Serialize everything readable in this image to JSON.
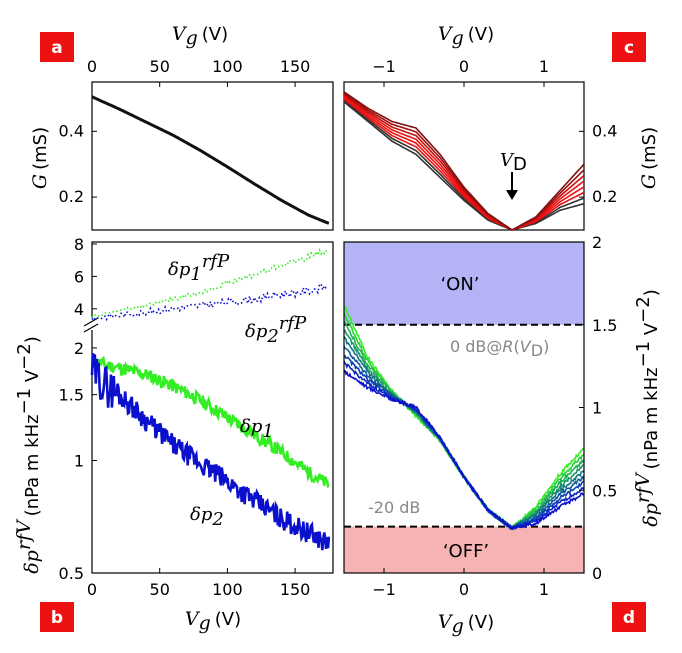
{
  "panels": {
    "a": {
      "badge": "a",
      "xlabel": "V_g (V)",
      "ylabel": "G (mS)"
    },
    "b": {
      "badge": "b",
      "xlabel": "V_g (V)",
      "ylabel": "δp^rfV (nPa m kHz^−1 V^−2)"
    },
    "c": {
      "badge": "c",
      "xlabel": "V_g (V)",
      "ylabel": "G (mS)"
    },
    "d": {
      "badge": "d",
      "xlabel": "V_g (V)",
      "ylabel": "δp^rfV (nPa m kHz^−1 V^−2)"
    }
  },
  "labels": {
    "vg_unit": "(V)",
    "g_unit": "(mS)",
    "dp_unit": "(nPa m kHz",
    "dp1_rfp": "δp1rfP",
    "dp2_rfp": "δp2rfP",
    "dp1": "δp1",
    "dp2": "δp2",
    "vd": "VD",
    "on": "‘ON’",
    "off": "‘OFF’",
    "zero_db": "0 dB@R(VD)",
    "minus20db": "-20 dB"
  },
  "colors": {
    "black": "#111111",
    "green": "#33ee22",
    "blue": "#0a10cc",
    "red": "#ee1111",
    "on_band": "#b3b3f5",
    "off_band": "#f6b3b3",
    "badge": "#ee1111"
  },
  "chart_data": [
    {
      "panel": "a",
      "type": "line",
      "xlabel": "Vg (V)",
      "ylabel": "G (mS)",
      "xlim": [
        0,
        178
      ],
      "ylim": [
        0.1,
        0.55
      ],
      "xticks": [
        0,
        50,
        100,
        150
      ],
      "yticks": [
        0.2,
        0.4
      ],
      "x": [
        0,
        20,
        40,
        60,
        80,
        100,
        120,
        140,
        160,
        175
      ],
      "series": [
        {
          "values": [
            0.505,
            0.468,
            0.428,
            0.388,
            0.342,
            0.292,
            0.24,
            0.19,
            0.145,
            0.12
          ]
        }
      ]
    },
    {
      "panel": "b",
      "type": "line",
      "xlabel": "Vg (V)",
      "ylabel": "δp^rfV (nPa m kHz^-1 V^-2)",
      "xlim": [
        0,
        178
      ],
      "ylim_lower": [
        0.5,
        2.1
      ],
      "ylim_upper": [
        3,
        8
      ],
      "yticks_lower": [
        0.5,
        1,
        1.5,
        2
      ],
      "yticks_upper": [
        4,
        6,
        8
      ],
      "yscale_lower": "log",
      "x": [
        0,
        10,
        20,
        40,
        60,
        80,
        100,
        120,
        140,
        160,
        175
      ],
      "series": [
        {
          "name": "δp1rfP",
          "values": [
            3.5,
            3.7,
            3.9,
            4.2,
            4.6,
            5.0,
            5.6,
            6.1,
            6.7,
            7.2,
            7.7
          ]
        },
        {
          "name": "δp2rfP",
          "values": [
            3.4,
            3.5,
            3.6,
            3.8,
            4.0,
            4.2,
            4.4,
            4.6,
            4.9,
            5.1,
            5.4
          ]
        },
        {
          "name": "δp1",
          "values": [
            1.85,
            1.8,
            1.77,
            1.7,
            1.58,
            1.45,
            1.3,
            1.17,
            1.05,
            0.93,
            0.86
          ]
        },
        {
          "name": "δp2",
          "values": [
            1.75,
            1.6,
            1.5,
            1.28,
            1.1,
            0.98,
            0.88,
            0.78,
            0.7,
            0.64,
            0.6
          ]
        }
      ]
    },
    {
      "panel": "c",
      "type": "line",
      "xlabel": "Vg (V)",
      "ylabel": "G (mS)",
      "xlim": [
        -1.5,
        1.5
      ],
      "ylim": [
        0.1,
        0.55
      ],
      "xticks": [
        -1,
        0,
        1
      ],
      "yticks": [
        0.2,
        0.4
      ],
      "annotation": "VD at Vg ≈ 0.6 V",
      "x": [
        -1.5,
        -1.2,
        -0.9,
        -0.6,
        -0.3,
        0,
        0.3,
        0.6,
        0.9,
        1.2,
        1.5
      ],
      "series": [
        {
          "values": [
            0.49,
            0.43,
            0.37,
            0.33,
            0.26,
            0.19,
            0.13,
            0.1,
            0.12,
            0.16,
            0.18
          ]
        },
        {
          "values": [
            0.5,
            0.45,
            0.4,
            0.37,
            0.29,
            0.21,
            0.14,
            0.1,
            0.13,
            0.19,
            0.24
          ]
        },
        {
          "values": [
            0.52,
            0.47,
            0.43,
            0.41,
            0.33,
            0.23,
            0.15,
            0.1,
            0.14,
            0.22,
            0.3
          ]
        }
      ]
    },
    {
      "panel": "d",
      "type": "line",
      "xlabel": "Vg (V)",
      "ylabel": "δp^rfV (nPa m kHz^-1 V^-2)",
      "xlim": [
        -1.5,
        1.5
      ],
      "ylim": [
        0,
        2
      ],
      "xticks": [
        -1,
        0,
        1
      ],
      "yticks": [
        0,
        0.5,
        1,
        1.5,
        2
      ],
      "bands": [
        {
          "label": "‘ON’",
          "from": 1.5,
          "to": 2
        },
        {
          "label": "‘OFF’",
          "from": 0,
          "to": 0.28
        }
      ],
      "reference_lines": [
        {
          "label": "0 dB@R(VD)",
          "y": 1.5
        },
        {
          "label": "-20 dB",
          "y": 0.28
        }
      ],
      "x": [
        -1.5,
        -1.2,
        -0.9,
        -0.6,
        -0.3,
        0,
        0.3,
        0.6,
        0.9,
        1.2,
        1.5
      ],
      "series": [
        {
          "values": [
            1.62,
            1.3,
            1.1,
            0.95,
            0.8,
            0.58,
            0.38,
            0.27,
            0.4,
            0.6,
            0.75
          ]
        },
        {
          "values": [
            1.45,
            1.22,
            1.07,
            0.97,
            0.8,
            0.58,
            0.38,
            0.27,
            0.35,
            0.5,
            0.62
          ]
        },
        {
          "values": [
            1.22,
            1.12,
            1.05,
            1.0,
            0.82,
            0.58,
            0.38,
            0.27,
            0.3,
            0.4,
            0.48
          ]
        }
      ]
    }
  ]
}
